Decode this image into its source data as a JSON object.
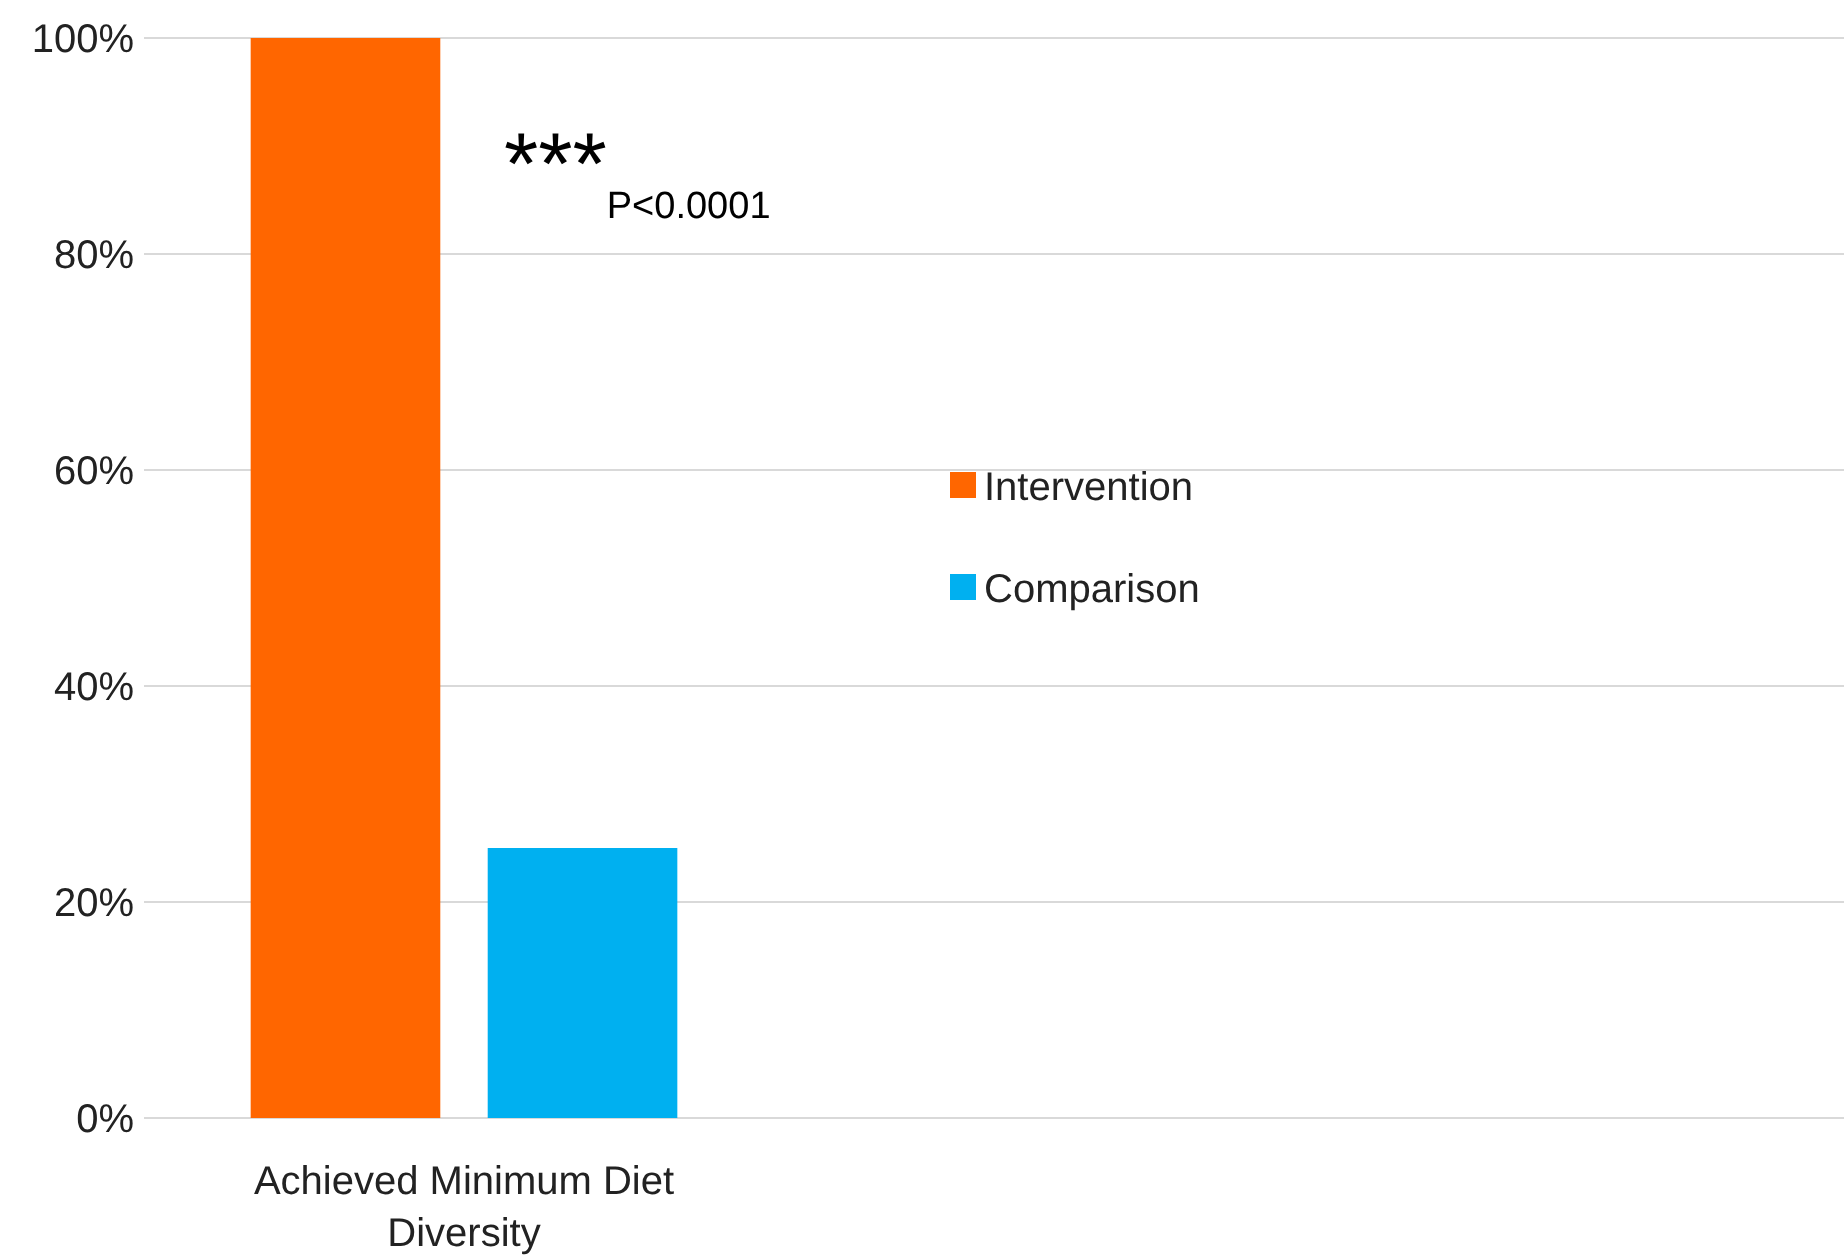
{
  "chart_data": {
    "type": "bar",
    "categories": [
      "Achieved Minimum Diet Diversity"
    ],
    "series": [
      {
        "name": "Intervention",
        "color": "#ff6600",
        "values": [
          100
        ]
      },
      {
        "name": "Comparison",
        "color": "#00b0f0",
        "values": [
          25
        ]
      }
    ],
    "ylim": [
      0,
      100
    ],
    "yticks": [
      {
        "value": 0,
        "label": "0%"
      },
      {
        "value": 20,
        "label": "20%"
      },
      {
        "value": 40,
        "label": "40%"
      },
      {
        "value": 60,
        "label": "60%"
      },
      {
        "value": 80,
        "label": "80%"
      },
      {
        "value": 100,
        "label": "100%"
      }
    ],
    "grid": "y",
    "legend": "right",
    "annotations": [
      "***$_{P<0.0001}$"
    ]
  }
}
